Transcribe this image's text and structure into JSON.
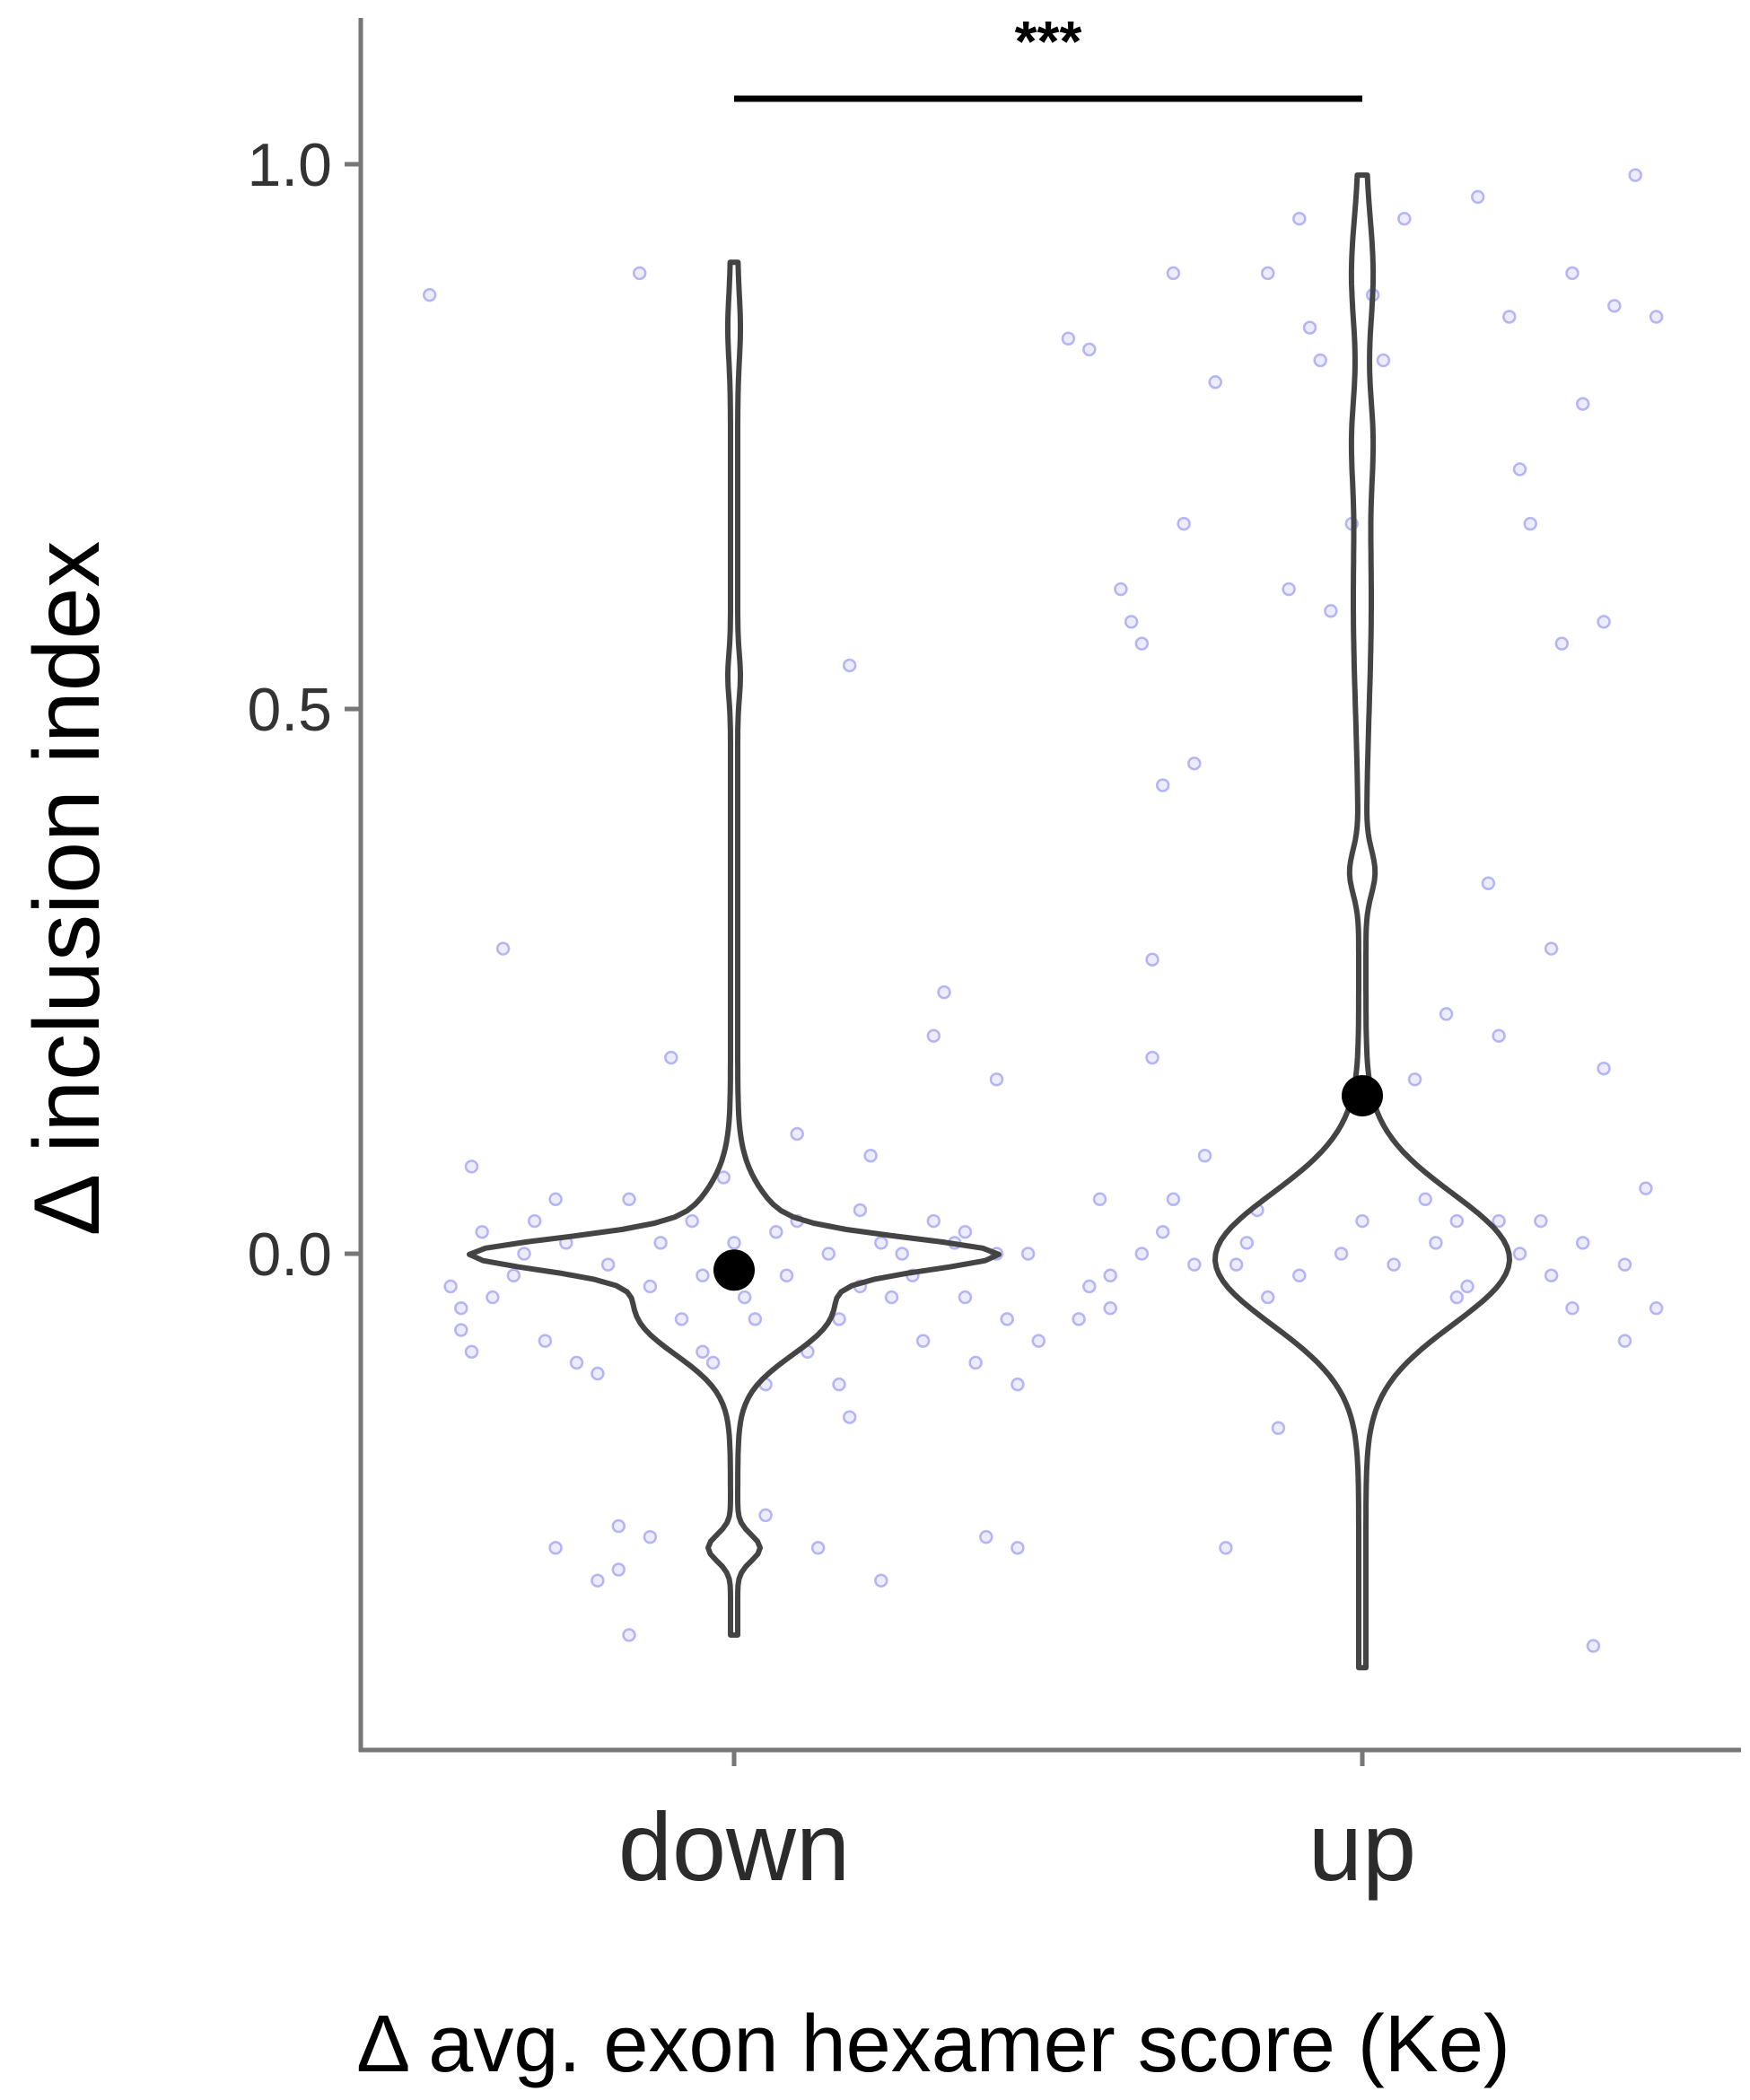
{
  "chart_data": {
    "type": "violin",
    "title": "",
    "xlabel": "Δ avg. exon hexamer score (Ke)",
    "ylabel": "Δ inclusion index",
    "ylim": [
      -0.45,
      1.14
    ],
    "yticks": [
      0.0,
      0.5,
      1.0
    ],
    "ytick_labels": [
      "0.0",
      "0.5",
      "1.0"
    ],
    "categories": [
      "down",
      "up"
    ],
    "significance": {
      "groups": [
        "down",
        "up"
      ],
      "label": "***"
    },
    "colors": {
      "points": "#6666ee",
      "violin": "#444444",
      "median": "#000000",
      "axis": "#777777"
    },
    "groups": [
      {
        "name": "down",
        "median": -0.015,
        "y_range": [
          -0.35,
          0.91
        ],
        "points": [
          [
            -0.29,
            0.88
          ],
          [
            -0.26,
            -0.07
          ],
          [
            -0.26,
            -0.05
          ],
          [
            -0.25,
            0.08
          ],
          [
            -0.25,
            -0.09
          ],
          [
            -0.24,
            0.02
          ],
          [
            -0.22,
            0.28
          ],
          [
            -0.2,
            0.0
          ],
          [
            -0.18,
            -0.08
          ],
          [
            -0.17,
            0.05
          ],
          [
            -0.17,
            -0.27
          ],
          [
            -0.15,
            -0.1
          ],
          [
            -0.13,
            -0.3
          ],
          [
            -0.13,
            -0.11
          ],
          [
            -0.11,
            -0.25
          ],
          [
            -0.11,
            -0.29
          ],
          [
            -0.1,
            0.05
          ],
          [
            -0.1,
            -0.35
          ],
          [
            -0.09,
            0.9
          ],
          [
            -0.08,
            -0.26
          ],
          [
            -0.06,
            0.18
          ],
          [
            -0.05,
            -0.06
          ],
          [
            -0.04,
            0.03
          ],
          [
            -0.03,
            -0.09
          ],
          [
            -0.02,
            -0.1
          ],
          [
            -0.01,
            0.07
          ],
          [
            0.01,
            -0.04
          ],
          [
            0.02,
            -0.06
          ],
          [
            0.03,
            -0.12
          ],
          [
            0.03,
            -0.24
          ],
          [
            0.04,
            0.02
          ],
          [
            0.06,
            0.11
          ],
          [
            0.07,
            -0.09
          ],
          [
            0.08,
            -0.27
          ],
          [
            0.1,
            -0.06
          ],
          [
            0.1,
            -0.12
          ],
          [
            0.11,
            -0.15
          ],
          [
            0.11,
            0.54
          ],
          [
            0.12,
            0.04
          ],
          [
            0.13,
            0.09
          ],
          [
            0.14,
            -0.3
          ],
          [
            0.15,
            -0.04
          ],
          [
            0.16,
            0.0
          ],
          [
            0.18,
            -0.08
          ],
          [
            0.19,
            0.2
          ],
          [
            0.2,
            0.24
          ],
          [
            0.22,
            0.02
          ],
          [
            0.23,
            -0.1
          ],
          [
            0.24,
            -0.26
          ],
          [
            0.25,
            0.16
          ],
          [
            0.26,
            -0.06
          ],
          [
            0.27,
            -0.12
          ],
          [
            0.27,
            -0.27
          ],
          [
            0.28,
            0.0
          ],
          [
            0.29,
            -0.08
          ],
          [
            -0.27,
            -0.03
          ],
          [
            -0.21,
            -0.02
          ],
          [
            -0.16,
            0.01
          ],
          [
            -0.12,
            -0.01
          ],
          [
            -0.07,
            0.01
          ],
          [
            -0.03,
            -0.02
          ],
          [
            0.0,
            0.01
          ],
          [
            0.05,
            -0.02
          ],
          [
            0.09,
            0.0
          ],
          [
            0.14,
            0.01
          ],
          [
            0.17,
            -0.02
          ],
          [
            0.21,
            0.01
          ],
          [
            0.25,
            0.0
          ],
          [
            -0.19,
            0.03
          ],
          [
            0.06,
            0.03
          ],
          [
            0.19,
            0.03
          ],
          [
            -0.08,
            -0.03
          ],
          [
            0.12,
            -0.03
          ],
          [
            0.22,
            -0.04
          ],
          [
            -0.23,
            -0.04
          ]
        ]
      },
      {
        "name": "up",
        "median": 0.145,
        "y_range": [
          -0.38,
          0.99
        ],
        "points": [
          [
            -0.28,
            0.84
          ],
          [
            -0.27,
            -0.06
          ],
          [
            -0.26,
            0.83
          ],
          [
            -0.25,
            0.05
          ],
          [
            -0.24,
            -0.02
          ],
          [
            -0.23,
            0.61
          ],
          [
            -0.22,
            0.58
          ],
          [
            -0.21,
            0.56
          ],
          [
            -0.2,
            0.27
          ],
          [
            -0.2,
            0.18
          ],
          [
            -0.19,
            0.43
          ],
          [
            -0.18,
            0.9
          ],
          [
            -0.18,
            0.05
          ],
          [
            -0.17,
            0.67
          ],
          [
            -0.16,
            0.45
          ],
          [
            -0.15,
            0.09
          ],
          [
            -0.14,
            0.8
          ],
          [
            -0.13,
            -0.27
          ],
          [
            -0.12,
            -0.01
          ],
          [
            -0.1,
            0.04
          ],
          [
            -0.09,
            0.9
          ],
          [
            -0.08,
            -0.16
          ],
          [
            -0.07,
            0.61
          ],
          [
            -0.06,
            0.95
          ],
          [
            -0.05,
            0.85
          ],
          [
            -0.04,
            0.82
          ],
          [
            -0.03,
            0.59
          ],
          [
            -0.01,
            0.67
          ],
          [
            0.01,
            0.88
          ],
          [
            0.02,
            0.82
          ],
          [
            0.04,
            0.95
          ],
          [
            0.05,
            0.16
          ],
          [
            0.06,
            0.05
          ],
          [
            0.08,
            0.22
          ],
          [
            0.09,
            0.03
          ],
          [
            0.11,
            0.97
          ],
          [
            0.12,
            0.34
          ],
          [
            0.13,
            0.2
          ],
          [
            0.14,
            0.86
          ],
          [
            0.15,
            0.72
          ],
          [
            0.16,
            0.67
          ],
          [
            0.17,
            0.03
          ],
          [
            0.18,
            0.28
          ],
          [
            0.19,
            0.56
          ],
          [
            0.2,
            0.9
          ],
          [
            0.21,
            0.78
          ],
          [
            0.22,
            -0.36
          ],
          [
            0.23,
            0.58
          ],
          [
            0.24,
            0.87
          ],
          [
            0.25,
            -0.08
          ],
          [
            0.26,
            0.99
          ],
          [
            0.27,
            0.06
          ],
          [
            0.28,
            0.86
          ],
          [
            0.28,
            -0.05
          ],
          [
            0.23,
            0.17
          ],
          [
            -0.26,
            -0.03
          ],
          [
            -0.21,
            0.0
          ],
          [
            -0.16,
            -0.01
          ],
          [
            -0.11,
            0.01
          ],
          [
            -0.06,
            -0.02
          ],
          [
            -0.02,
            0.0
          ],
          [
            0.03,
            -0.01
          ],
          [
            0.07,
            0.01
          ],
          [
            0.1,
            -0.03
          ],
          [
            0.15,
            0.0
          ],
          [
            0.18,
            -0.02
          ],
          [
            0.21,
            0.01
          ],
          [
            0.25,
            -0.01
          ],
          [
            -0.19,
            0.02
          ],
          [
            0.0,
            0.03
          ],
          [
            0.13,
            0.03
          ],
          [
            -0.09,
            -0.04
          ],
          [
            0.09,
            -0.04
          ],
          [
            0.2,
            -0.05
          ],
          [
            -0.24,
            -0.05
          ]
        ]
      }
    ]
  }
}
